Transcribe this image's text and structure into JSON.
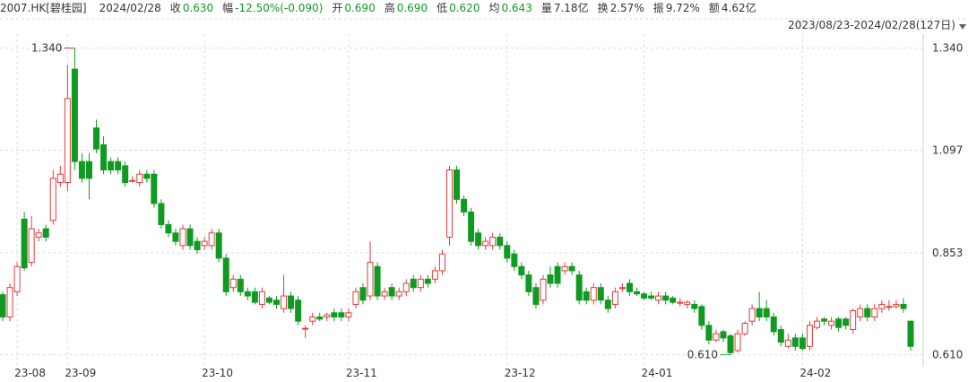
{
  "header": {
    "symbol": "2007.HK[碧桂园]",
    "date": "2024/02/28",
    "quote": [
      {
        "label": "收",
        "value": "0.630",
        "color": "#119a22"
      },
      {
        "label": "幅",
        "value": "-12.50%(-0.090)",
        "color": "#119a22"
      },
      {
        "label": "开",
        "value": "0.690",
        "color": "#119a22"
      },
      {
        "label": "高",
        "value": "0.690",
        "color": "#119a22"
      },
      {
        "label": "低",
        "value": "0.620",
        "color": "#119a22"
      },
      {
        "label": "均",
        "value": "0.643",
        "color": "#119a22"
      },
      {
        "label": "量",
        "value": "7.18亿",
        "color": "#333333"
      },
      {
        "label": "换",
        "value": "2.57%",
        "color": "#333333"
      },
      {
        "label": "振",
        "value": "9.72%",
        "color": "#333333"
      },
      {
        "label": "额",
        "value": "4.62亿",
        "color": "#333333"
      }
    ]
  },
  "chart_data": {
    "type": "candlestick",
    "subtitle": "2023/08/23-2024/02/28(127日)",
    "up_color": "#e23b3b",
    "down_color": "#119a22",
    "grid": true,
    "ylim": [
      0.59,
      1.365
    ],
    "yticks": [
      {
        "value": 1.34,
        "label": "1.340"
      },
      {
        "value": 1.097,
        "label": "1.097"
      },
      {
        "value": 0.853,
        "label": "0.853"
      },
      {
        "value": 0.61,
        "label": "0.610"
      }
    ],
    "annotations": [
      {
        "value": 1.34,
        "label": "1.340",
        "color": "#cc0000"
      },
      {
        "value": 0.61,
        "label": "0.610",
        "color": "#119a22"
      }
    ],
    "categories": [
      null,
      null,
      "23-08",
      null,
      null,
      null,
      null,
      null,
      null,
      "23-09",
      null,
      null,
      null,
      null,
      null,
      null,
      null,
      null,
      null,
      null,
      null,
      null,
      null,
      null,
      null,
      null,
      null,
      null,
      "23-10",
      null,
      null,
      null,
      null,
      null,
      null,
      null,
      null,
      null,
      null,
      null,
      null,
      null,
      null,
      null,
      null,
      null,
      null,
      null,
      "23-11",
      null,
      null,
      null,
      null,
      null,
      null,
      null,
      null,
      null,
      null,
      null,
      null,
      null,
      null,
      null,
      null,
      null,
      null,
      null,
      null,
      null,
      "23-12",
      null,
      null,
      null,
      null,
      null,
      null,
      null,
      null,
      null,
      null,
      null,
      null,
      null,
      null,
      null,
      null,
      null,
      null,
      "24-01",
      null,
      null,
      null,
      null,
      null,
      null,
      null,
      null,
      null,
      null,
      null,
      null,
      null,
      null,
      null,
      null,
      null,
      null,
      null,
      null,
      null,
      "24-02",
      null,
      null,
      null,
      null,
      null,
      null,
      null,
      null,
      null,
      null,
      null,
      null,
      null,
      null,
      null
    ],
    "open": [
      0.753,
      0.7,
      0.76,
      0.933,
      0.83,
      0.89,
      0.91,
      0.93,
      1.02,
      1.02,
      1.29,
      1.07,
      1.07,
      1.15,
      1.11,
      1.07,
      1.07,
      1.06,
      1.025,
      1.02,
      1.04,
      1.04,
      0.97,
      0.92,
      0.9,
      0.87,
      0.91,
      0.88,
      0.87,
      0.87,
      0.9,
      0.84,
      0.77,
      0.79,
      0.76,
      0.76,
      0.73,
      0.745,
      0.74,
      0.72,
      0.75,
      0.74,
      0.673,
      0.69,
      0.7,
      0.7,
      0.71,
      0.71,
      0.7,
      0.73,
      0.77,
      0.75,
      0.82,
      0.75,
      0.77,
      0.75,
      0.76,
      0.79,
      0.77,
      0.79,
      0.79,
      0.81,
      0.89,
      1.05,
      0.98,
      0.95,
      0.9,
      0.87,
      0.87,
      0.89,
      0.87,
      0.85,
      0.82,
      0.8,
      0.77,
      0.74,
      0.8,
      0.82,
      0.81,
      0.82,
      0.8,
      0.76,
      0.74,
      0.77,
      0.74,
      0.73,
      0.77,
      0.78,
      0.76,
      0.755,
      0.75,
      0.74,
      0.75,
      0.745,
      0.735,
      0.73,
      0.73,
      0.725,
      0.68,
      0.645,
      0.665,
      0.655,
      0.62,
      0.66,
      0.69,
      0.72,
      0.72,
      0.7,
      0.67,
      0.63,
      0.65,
      0.65,
      0.63,
      0.675,
      0.695,
      0.68,
      0.695,
      0.695,
      0.67,
      0.7,
      0.72,
      0.7,
      0.72,
      0.725,
      0.725,
      0.73,
      0.69
    ],
    "high": [
      0.76,
      0.78,
      0.83,
      0.95,
      0.94,
      0.91,
      0.92,
      1.05,
      1.06,
      1.3,
      1.34,
      1.09,
      1.09,
      1.17,
      1.13,
      1.08,
      1.08,
      1.07,
      1.035,
      1.05,
      1.05,
      1.05,
      0.98,
      0.93,
      0.91,
      0.92,
      0.92,
      0.89,
      0.89,
      0.91,
      0.91,
      0.85,
      0.8,
      0.8,
      0.77,
      0.77,
      0.77,
      0.75,
      0.75,
      0.8,
      0.76,
      0.75,
      0.68,
      0.71,
      0.71,
      0.71,
      0.72,
      0.72,
      0.72,
      0.77,
      0.78,
      0.88,
      0.83,
      0.77,
      0.78,
      0.77,
      0.79,
      0.8,
      0.8,
      0.8,
      0.82,
      0.86,
      1.06,
      1.06,
      0.99,
      0.96,
      0.91,
      0.89,
      0.9,
      0.9,
      0.88,
      0.86,
      0.83,
      0.81,
      0.78,
      0.8,
      0.82,
      0.83,
      0.83,
      0.83,
      0.81,
      0.77,
      0.78,
      0.78,
      0.75,
      0.77,
      0.78,
      0.79,
      0.77,
      0.76,
      0.76,
      0.76,
      0.76,
      0.75,
      0.745,
      0.74,
      0.74,
      0.73,
      0.69,
      0.67,
      0.67,
      0.66,
      0.67,
      0.69,
      0.73,
      0.76,
      0.74,
      0.71,
      0.68,
      0.66,
      0.66,
      0.66,
      0.69,
      0.7,
      0.7,
      0.7,
      0.7,
      0.7,
      0.72,
      0.73,
      0.73,
      0.73,
      0.74,
      0.74,
      0.74,
      0.745,
      0.69
    ],
    "low": [
      0.69,
      0.69,
      0.75,
      0.81,
      0.82,
      0.88,
      0.88,
      0.92,
      1.01,
      1.0,
      1.05,
      1.02,
      0.98,
      1.09,
      1.04,
      1.04,
      1.04,
      1.01,
      1.02,
      1.01,
      1.02,
      0.96,
      0.91,
      0.89,
      0.87,
      0.86,
      0.86,
      0.85,
      0.86,
      0.86,
      0.83,
      0.75,
      0.76,
      0.75,
      0.74,
      0.73,
      0.72,
      0.73,
      0.72,
      0.71,
      0.71,
      0.68,
      0.65,
      0.68,
      0.69,
      0.69,
      0.69,
      0.69,
      0.69,
      0.72,
      0.73,
      0.74,
      0.74,
      0.74,
      0.74,
      0.74,
      0.75,
      0.76,
      0.76,
      0.77,
      0.78,
      0.8,
      0.87,
      0.97,
      0.94,
      0.87,
      0.86,
      0.86,
      0.86,
      0.86,
      0.83,
      0.81,
      0.79,
      0.75,
      0.72,
      0.73,
      0.77,
      0.77,
      0.8,
      0.8,
      0.73,
      0.73,
      0.73,
      0.73,
      0.71,
      0.72,
      0.76,
      0.75,
      0.75,
      0.74,
      0.74,
      0.73,
      0.73,
      0.73,
      0.725,
      0.72,
      0.71,
      0.67,
      0.635,
      0.64,
      0.64,
      0.61,
      0.615,
      0.655,
      0.68,
      0.69,
      0.69,
      0.655,
      0.63,
      0.625,
      0.62,
      0.62,
      0.62,
      0.67,
      0.68,
      0.67,
      0.665,
      0.67,
      0.66,
      0.69,
      0.69,
      0.69,
      0.71,
      0.715,
      0.72,
      0.71,
      0.62
    ],
    "close": [
      0.7,
      0.77,
      0.82,
      0.817,
      0.91,
      0.9,
      0.89,
      1.03,
      1.04,
      1.22,
      1.07,
      1.03,
      1.03,
      1.1,
      1.05,
      1.05,
      1.05,
      1.02,
      1.025,
      1.04,
      1.03,
      0.97,
      0.92,
      0.9,
      0.88,
      0.91,
      0.87,
      0.86,
      0.88,
      0.9,
      0.84,
      0.76,
      0.79,
      0.76,
      0.75,
      0.735,
      0.76,
      0.735,
      0.73,
      0.75,
      0.72,
      0.69,
      0.673,
      0.7,
      0.695,
      0.705,
      0.7,
      0.7,
      0.71,
      0.76,
      0.74,
      0.83,
      0.75,
      0.76,
      0.75,
      0.76,
      0.78,
      0.77,
      0.79,
      0.78,
      0.81,
      0.85,
      1.05,
      0.98,
      0.95,
      0.88,
      0.87,
      0.88,
      0.89,
      0.87,
      0.84,
      0.82,
      0.8,
      0.76,
      0.73,
      0.79,
      0.78,
      0.78,
      0.82,
      0.81,
      0.74,
      0.74,
      0.77,
      0.74,
      0.72,
      0.76,
      0.77,
      0.76,
      0.755,
      0.745,
      0.745,
      0.75,
      0.74,
      0.735,
      0.735,
      0.735,
      0.72,
      0.68,
      0.645,
      0.66,
      0.65,
      0.615,
      0.66,
      0.685,
      0.72,
      0.7,
      0.7,
      0.665,
      0.64,
      0.645,
      0.63,
      0.625,
      0.68,
      0.69,
      0.69,
      0.69,
      0.675,
      0.68,
      0.715,
      0.72,
      0.7,
      0.72,
      0.73,
      0.725,
      0.73,
      0.72,
      0.63
    ]
  }
}
